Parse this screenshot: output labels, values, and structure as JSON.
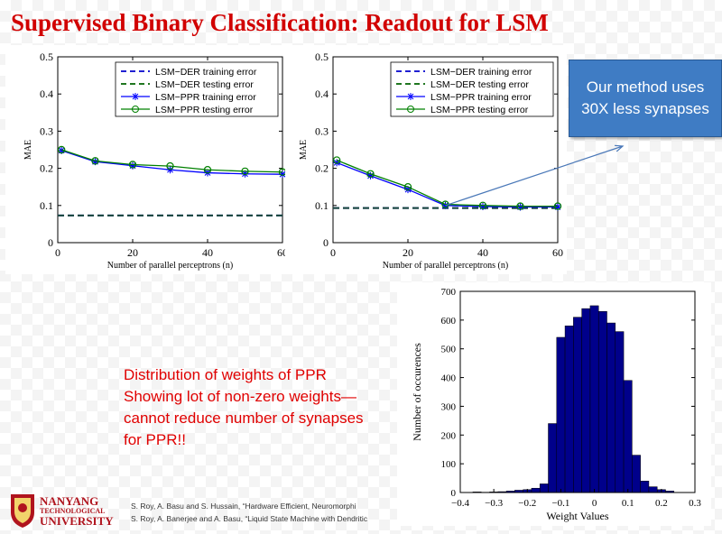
{
  "title": "Supervised Binary Classification: Readout for LSM",
  "callout": {
    "line1": "Our method uses",
    "line2": "30X less synapses"
  },
  "note": {
    "lines": [
      "Distribution of weights of PPR",
      "Showing lot of non-zero weights—",
      "cannot reduce number of synapses",
      "for PPR!!"
    ]
  },
  "logo": {
    "line1": "NANYANG",
    "line2": "TECHNOLOGICAL",
    "line3": "UNIVERSITY"
  },
  "references": [
    "S. Roy, A. Basu and S. Hussain, “Hardware Efficient, Neuromorphi",
    "S. Roy, A. Banerjee and A. Basu, “Liquid State Machine with Dendritic"
  ],
  "colors": {
    "title": "#d10000",
    "callout_bg": "#3f7cc4",
    "note": "#e00000",
    "hist_bar": "#00008b",
    "der_train": "#0000cc",
    "der_test": "#006400",
    "ppr_train": "#0000ff",
    "ppr_test": "#008000"
  },
  "chart_data": [
    {
      "type": "line",
      "xlabel": "Number of parallel perceptrons (n)",
      "ylabel": "MAE",
      "xlim": [
        0,
        60
      ],
      "ylim": [
        0,
        0.5
      ],
      "xticks": [
        0,
        20,
        40,
        60
      ],
      "yticks": [
        0,
        0.1,
        0.2,
        0.3,
        0.4,
        0.5
      ],
      "legend_position": "top-right",
      "series": [
        {
          "name": "LSM−DER training error",
          "style": "dashed",
          "x": [
            0,
            60
          ],
          "y": [
            0.073,
            0.073
          ]
        },
        {
          "name": "LSM−DER testing error",
          "style": "dashed",
          "x": [
            0,
            60
          ],
          "y": [
            0.073,
            0.073
          ]
        },
        {
          "name": "LSM−PPR training error",
          "style": "star",
          "x": [
            1,
            10,
            20,
            30,
            40,
            50,
            60
          ],
          "y": [
            0.248,
            0.218,
            0.207,
            0.196,
            0.188,
            0.185,
            0.184
          ]
        },
        {
          "name": "LSM−PPR testing error",
          "style": "circle",
          "x": [
            1,
            10,
            20,
            30,
            40,
            50,
            60
          ],
          "y": [
            0.25,
            0.22,
            0.21,
            0.206,
            0.196,
            0.192,
            0.19
          ]
        }
      ]
    },
    {
      "type": "line",
      "xlabel": "Number of parallel perceptrons (n)",
      "ylabel": "MAE",
      "xlim": [
        0,
        60
      ],
      "ylim": [
        0,
        0.5
      ],
      "xticks": [
        0,
        20,
        40,
        60
      ],
      "yticks": [
        0,
        0.1,
        0.2,
        0.3,
        0.4,
        0.5
      ],
      "legend_position": "top-right",
      "series": [
        {
          "name": "LSM−DER training error",
          "style": "dashed",
          "x": [
            0,
            60
          ],
          "y": [
            0.093,
            0.093
          ]
        },
        {
          "name": "LSM−DER testing error",
          "style": "dashed",
          "x": [
            0,
            60
          ],
          "y": [
            0.093,
            0.093
          ]
        },
        {
          "name": "LSM−PPR training error",
          "style": "star",
          "x": [
            1,
            10,
            20,
            30,
            40,
            50,
            60
          ],
          "y": [
            0.215,
            0.18,
            0.143,
            0.1,
            0.097,
            0.096,
            0.096
          ]
        },
        {
          "name": "LSM−PPR testing error",
          "style": "circle",
          "x": [
            1,
            10,
            20,
            30,
            40,
            50,
            60
          ],
          "y": [
            0.222,
            0.185,
            0.15,
            0.103,
            0.1,
            0.098,
            0.098
          ]
        }
      ]
    },
    {
      "type": "bar",
      "xlabel": "Weight Values",
      "ylabel": "Number of occurences",
      "xlim": [
        -0.4,
        0.3
      ],
      "ylim": [
        0,
        700
      ],
      "xticks": [
        -0.4,
        -0.3,
        -0.2,
        -0.1,
        0,
        0.1,
        0.2,
        0.3
      ],
      "xtick_labels": [
        "−0.4",
        "−0.3",
        "−0.2",
        "−0.1",
        "0",
        "0.1",
        "0.2",
        "0.3"
      ],
      "yticks": [
        0,
        100,
        200,
        300,
        400,
        500,
        600,
        700
      ],
      "bin_width": 0.025,
      "bin_centers": [
        -0.35,
        -0.325,
        -0.3,
        -0.275,
        -0.25,
        -0.225,
        -0.2,
        -0.175,
        -0.15,
        -0.125,
        -0.1,
        -0.075,
        -0.05,
        -0.025,
        0,
        0.025,
        0.05,
        0.075,
        0.1,
        0.125,
        0.15,
        0.175,
        0.2,
        0.225
      ],
      "values": [
        2,
        1,
        2,
        3,
        5,
        8,
        10,
        15,
        30,
        240,
        540,
        580,
        610,
        640,
        650,
        630,
        590,
        560,
        390,
        130,
        40,
        20,
        10,
        5
      ]
    }
  ]
}
